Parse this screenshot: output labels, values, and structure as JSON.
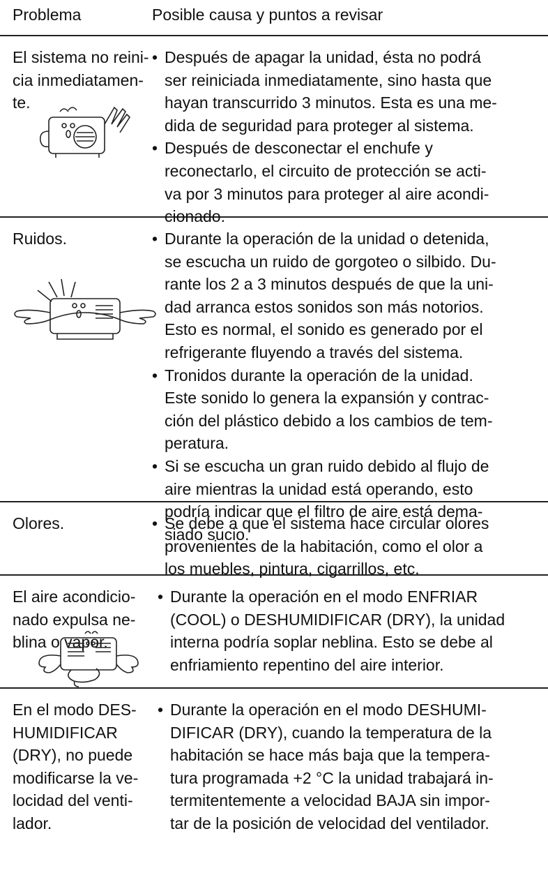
{
  "header": {
    "problem": "Problema",
    "cause": "Posible causa y puntos a revisar"
  },
  "rows": [
    {
      "problem": [
        "El sistema no reini-",
        "cia inmediatamen-",
        "te."
      ],
      "causes": [
        [
          "Después de apagar la unidad, ésta no podrá",
          "ser reiniciada inmediatamente, sino hasta que",
          "hayan transcurrido 3 minutos. Esta es una me-",
          "dida de seguridad para proteger al sistema."
        ],
        [
          "Después de desconectar el enchufe y",
          "reconectarlo, el circuito de protección se acti-",
          "va por 3 minutos para proteger al aire acondi-",
          "cionado."
        ]
      ]
    },
    {
      "problem": [
        "Ruidos."
      ],
      "causes": [
        [
          "Durante la operación de la unidad o detenida,",
          "se escucha un ruido de gorgoteo o silbido. Du-",
          "rante los 2 a 3 minutos después de que la uni-",
          "dad arranca estos sonidos son más notorios.",
          "Esto es normal, el sonido es generado por el",
          "refrigerante fluyendo a través del sistema."
        ],
        [
          "Tronidos durante la operación de la unidad.",
          "Este sonido lo genera la expansión y contrac-",
          "ción del plástico debido a los cambios de tem-",
          "peratura."
        ],
        [
          "Si se escucha un gran ruido debido al flujo de",
          "aire mientras la unidad está operando, esto",
          "podría indicar que el filtro de aire está dema-",
          "siado sucio."
        ]
      ]
    },
    {
      "problem": [
        "Olores."
      ],
      "causes": [
        [
          "Se debe a que el sistema hace circular olores",
          "provenientes de la habitación, como el olor a",
          "los muebles, pintura, cigarrillos, etc."
        ]
      ]
    },
    {
      "problem": [
        "El aire acondicio-",
        "nado expulsa ne-",
        "blina o vapor."
      ],
      "causes": [
        [
          "Durante la operación en el modo ENFRIAR",
          "(COOL) o DESHUMIDIFICAR (DRY), la unidad",
          "interna podría soplar neblina. Esto se debe al",
          "enfriamiento repentino del aire interior."
        ]
      ]
    },
    {
      "problem": [
        "En el modo DES-",
        "HUMIDIFICAR",
        "(DRY), no puede",
        "modificarse la ve-",
        "locidad del venti-",
        "lador."
      ],
      "causes": [
        [
          "Durante la operación en el modo DESHUMI-",
          "DIFICAR (DRY), cuando la temperatura de la",
          "habitación se hace más baja que la tempera-",
          "tura programada +2 °C la unidad trabajará in-",
          "termitentemente a velocidad BAJA sin impor-",
          "tar de la posición de velocidad del ventilador."
        ]
      ]
    }
  ]
}
